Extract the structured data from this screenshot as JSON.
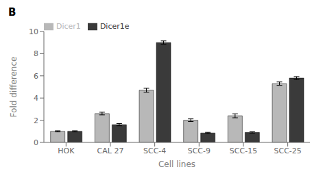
{
  "chart_data": {
    "type": "bar",
    "title": "B",
    "categories": [
      "HOK",
      "CAL 27",
      "SCC-4",
      "SCC-9",
      "SCC-15",
      "SCC-25"
    ],
    "series": [
      {
        "name": "Dicer1",
        "color": "#b8b8b8",
        "values": [
          1.0,
          2.6,
          4.7,
          2.0,
          2.4,
          5.3
        ],
        "errors": [
          0.05,
          0.12,
          0.18,
          0.12,
          0.18,
          0.15
        ]
      },
      {
        "name": "Dicer1e",
        "color": "#3a3a3a",
        "values": [
          1.0,
          1.6,
          9.0,
          0.85,
          0.9,
          5.8
        ],
        "errors": [
          0.05,
          0.1,
          0.15,
          0.06,
          0.06,
          0.13
        ]
      }
    ],
    "xlabel": "Cell lines",
    "ylabel": "Fold difference",
    "ylim": [
      0,
      10
    ],
    "yticks": [
      0,
      2,
      4,
      6,
      8,
      10
    ],
    "legend": "upper left",
    "grid": false
  }
}
